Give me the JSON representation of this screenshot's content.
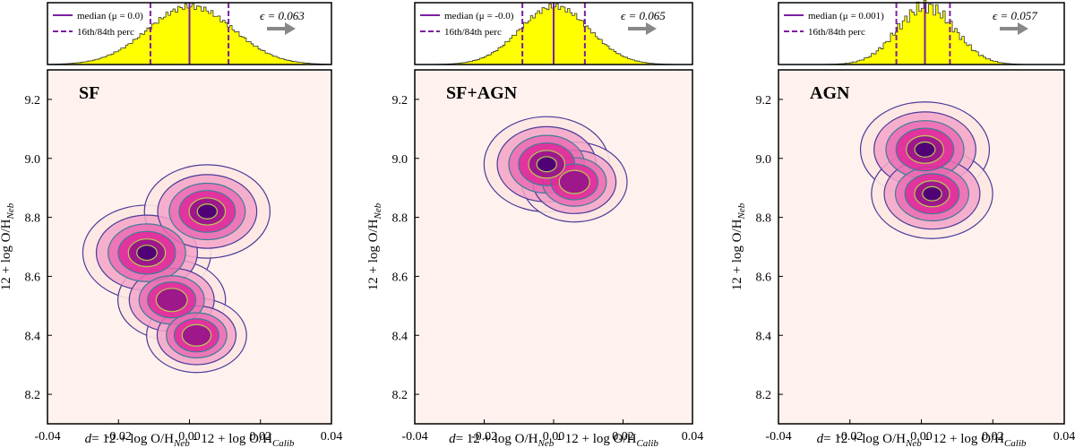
{
  "chart_data": [
    {
      "type": "heatmap",
      "panel_label": "SF",
      "xlabel_main": "12 + log O/H",
      "xlabel_sub1": "Neb",
      "xlabel_mid": " -  12 + log O/H",
      "xlabel_sub2": "Calib",
      "xlabel_prefix": "= ",
      "dbar_symbol": "d",
      "ylabel_main": "12 + log O/H",
      "ylabel_sub": "Neb",
      "xlim": [
        -0.04,
        0.04
      ],
      "ylim": [
        8.1,
        9.3
      ],
      "xticks": [
        "-0.04",
        "-0.02",
        "0.00",
        "0.02",
        "0.04"
      ],
      "yticks": [
        "8.2",
        "8.4",
        "8.6",
        "8.8",
        "9.0",
        "9.2"
      ],
      "density_peaks": [
        {
          "x": -0.012,
          "y": 8.68,
          "weight": 1.0
        },
        {
          "x": 0.005,
          "y": 8.82,
          "weight": 0.95
        },
        {
          "x": -0.005,
          "y": 8.52,
          "weight": 0.6
        },
        {
          "x": 0.002,
          "y": 8.4,
          "weight": 0.45
        }
      ],
      "histogram": {
        "median_label": "median (μ = 0.0)",
        "perc_label": "16th/84th perc",
        "epsilon_label": "ϵ = 0.063",
        "median": 0.0,
        "p16": -0.011,
        "p84": 0.011,
        "sigma": 0.012
      }
    },
    {
      "type": "heatmap",
      "panel_label": "SF+AGN",
      "xlabel_main": "12 + log O/H",
      "xlabel_sub1": "Neb",
      "xlabel_mid": " -  12 + log O/H",
      "xlabel_sub2": "Calib",
      "xlabel_prefix": "= ",
      "dbar_symbol": "d",
      "ylabel_main": "12 + log O/H",
      "ylabel_sub": "Neb",
      "xlim": [
        -0.04,
        0.04
      ],
      "ylim": [
        8.1,
        9.3
      ],
      "xticks": [
        "-0.04",
        "-0.02",
        "0.00",
        "0.02",
        "0.04"
      ],
      "yticks": [
        "8.2",
        "8.4",
        "8.6",
        "8.8",
        "9.0",
        "9.2"
      ],
      "density_peaks": [
        {
          "x": -0.002,
          "y": 8.98,
          "weight": 1.0
        },
        {
          "x": 0.006,
          "y": 8.92,
          "weight": 0.6
        }
      ],
      "histogram": {
        "median_label": "median (μ = -0.0)",
        "perc_label": "16th/84th perc",
        "epsilon_label": "ϵ = 0.065",
        "median": 0.0,
        "p16": -0.009,
        "p84": 0.009,
        "sigma": 0.01
      }
    },
    {
      "type": "heatmap",
      "panel_label": "AGN",
      "xlabel_main": "12 + log O/H",
      "xlabel_sub1": "Neb",
      "xlabel_mid": " -  12 + log O/H",
      "xlabel_sub2": "Calib",
      "xlabel_prefix": "= ",
      "dbar_symbol": "d",
      "ylabel_main": "12 + log O/H",
      "ylabel_sub": "Neb",
      "xlim": [
        -0.04,
        0.04
      ],
      "ylim": [
        8.1,
        9.3
      ],
      "xticks": [
        "-0.04",
        "-0.02",
        "0.00",
        "0.02",
        "0.04"
      ],
      "yticks": [
        "8.2",
        "8.4",
        "8.6",
        "8.8",
        "9.0",
        "9.2"
      ],
      "density_peaks": [
        {
          "x": 0.001,
          "y": 9.03,
          "weight": 1.0
        },
        {
          "x": 0.003,
          "y": 8.88,
          "weight": 0.85
        }
      ],
      "histogram": {
        "median_label": "median (μ = 0.001)",
        "perc_label": "16th/84th perc",
        "epsilon_label": "ϵ = 0.057",
        "median": 0.001,
        "p16": -0.007,
        "p84": 0.008,
        "sigma": 0.008
      }
    }
  ],
  "colors": {
    "background": "#fff2ee",
    "heat_low": "#fde7e2",
    "heat_mid": "#e0299a",
    "heat_high": "#4d0075",
    "contour_outer": "#4b3a99",
    "contour_mid": "#3d7d96",
    "contour_inner": "#b8cc54",
    "hist_fill": "#ffff00",
    "hist_edge": "#333333",
    "median_line": "#7b1fa2",
    "arrow": "#888888"
  }
}
